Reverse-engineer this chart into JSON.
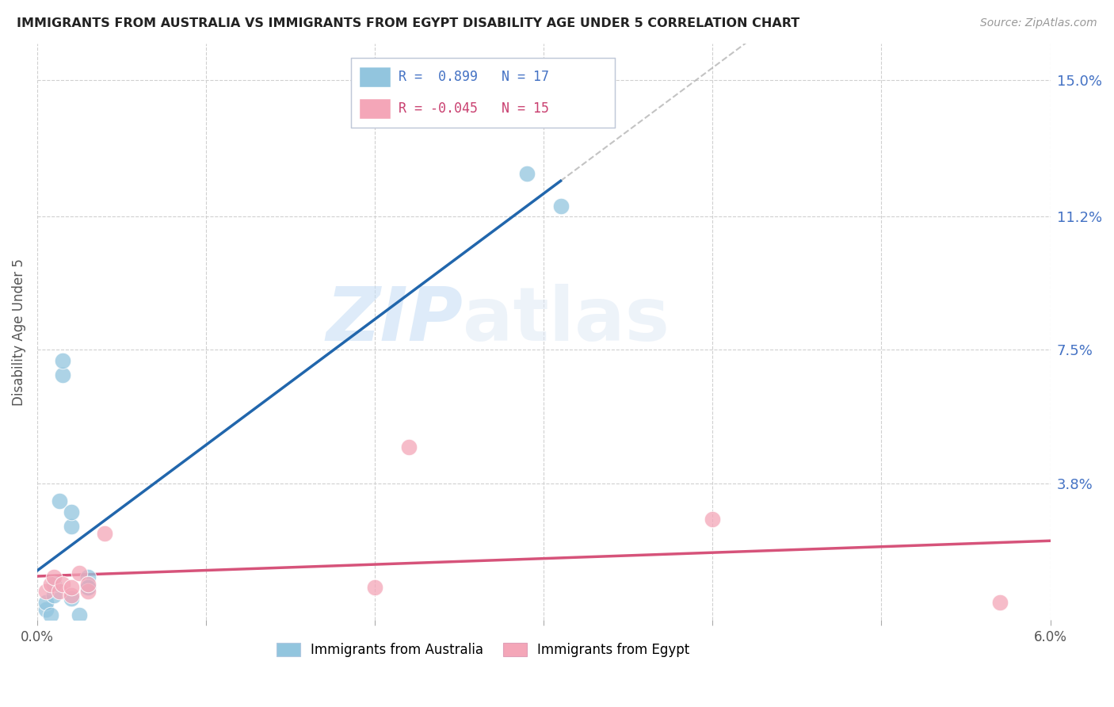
{
  "title": "IMMIGRANTS FROM AUSTRALIA VS IMMIGRANTS FROM EGYPT DISABILITY AGE UNDER 5 CORRELATION CHART",
  "source": "Source: ZipAtlas.com",
  "ylabel": "Disability Age Under 5",
  "xlim": [
    0.0,
    0.06
  ],
  "ylim": [
    0.0,
    0.16
  ],
  "xticks": [
    0.0,
    0.01,
    0.02,
    0.03,
    0.04,
    0.05,
    0.06
  ],
  "xticklabels": [
    "0.0%",
    "",
    "",
    "",
    "",
    "",
    "6.0%"
  ],
  "right_ytick_positions": [
    0.038,
    0.075,
    0.112,
    0.15
  ],
  "right_ytick_labels": [
    "3.8%",
    "7.5%",
    "11.2%",
    "15.0%"
  ],
  "watermark_zip": "ZIP",
  "watermark_atlas": "atlas",
  "australia_color": "#92c5de",
  "egypt_color": "#f4a6b8",
  "australia_line_color": "#2166ac",
  "egypt_line_color": "#d6537a",
  "R_australia": 0.899,
  "N_australia": 17,
  "R_egypt": -0.045,
  "N_egypt": 15,
  "australia_x": [
    0.0005,
    0.0005,
    0.0008,
    0.001,
    0.001,
    0.0013,
    0.0015,
    0.0015,
    0.002,
    0.002,
    0.002,
    0.0025,
    0.003,
    0.003,
    0.003,
    0.029,
    0.031
  ],
  "australia_y": [
    0.003,
    0.005,
    0.0015,
    0.007,
    0.01,
    0.033,
    0.068,
    0.072,
    0.006,
    0.026,
    0.03,
    0.0015,
    0.009,
    0.012,
    0.009,
    0.124,
    0.115
  ],
  "egypt_x": [
    0.0005,
    0.0008,
    0.001,
    0.0013,
    0.0015,
    0.002,
    0.002,
    0.0025,
    0.003,
    0.003,
    0.004,
    0.02,
    0.022,
    0.04,
    0.057
  ],
  "egypt_y": [
    0.008,
    0.01,
    0.012,
    0.008,
    0.01,
    0.007,
    0.009,
    0.013,
    0.008,
    0.01,
    0.024,
    0.009,
    0.048,
    0.028,
    0.005
  ],
  "background_color": "#ffffff",
  "grid_color": "#d0d0d0",
  "legend_box_color": "#f0f4ff",
  "legend_border_color": "#b0b8d0"
}
